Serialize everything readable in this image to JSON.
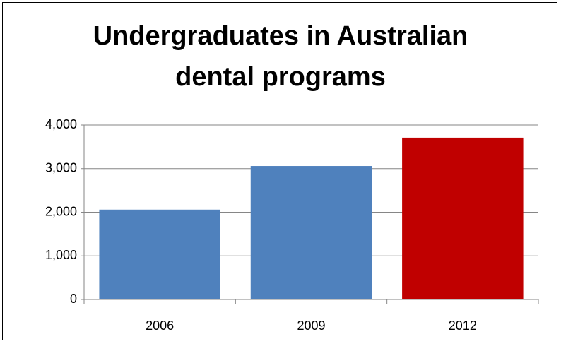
{
  "chart_data": {
    "type": "bar",
    "title": "Undergraduates in Australian dental programs",
    "categories": [
      "2006",
      "2009",
      "2012"
    ],
    "values": [
      2060,
      3060,
      3710
    ],
    "colors": [
      "#4f81bd",
      "#4f81bd",
      "#c00000"
    ],
    "ylim": [
      0,
      4000
    ],
    "yticks": [
      0,
      {
        "value": 1000,
        "label": "1,000"
      },
      {
        "value": 2000,
        "label": "2,000"
      },
      {
        "value": 3000,
        "label": "3,000"
      },
      {
        "value": 4000,
        "label": "4,000"
      }
    ],
    "grid": true
  }
}
